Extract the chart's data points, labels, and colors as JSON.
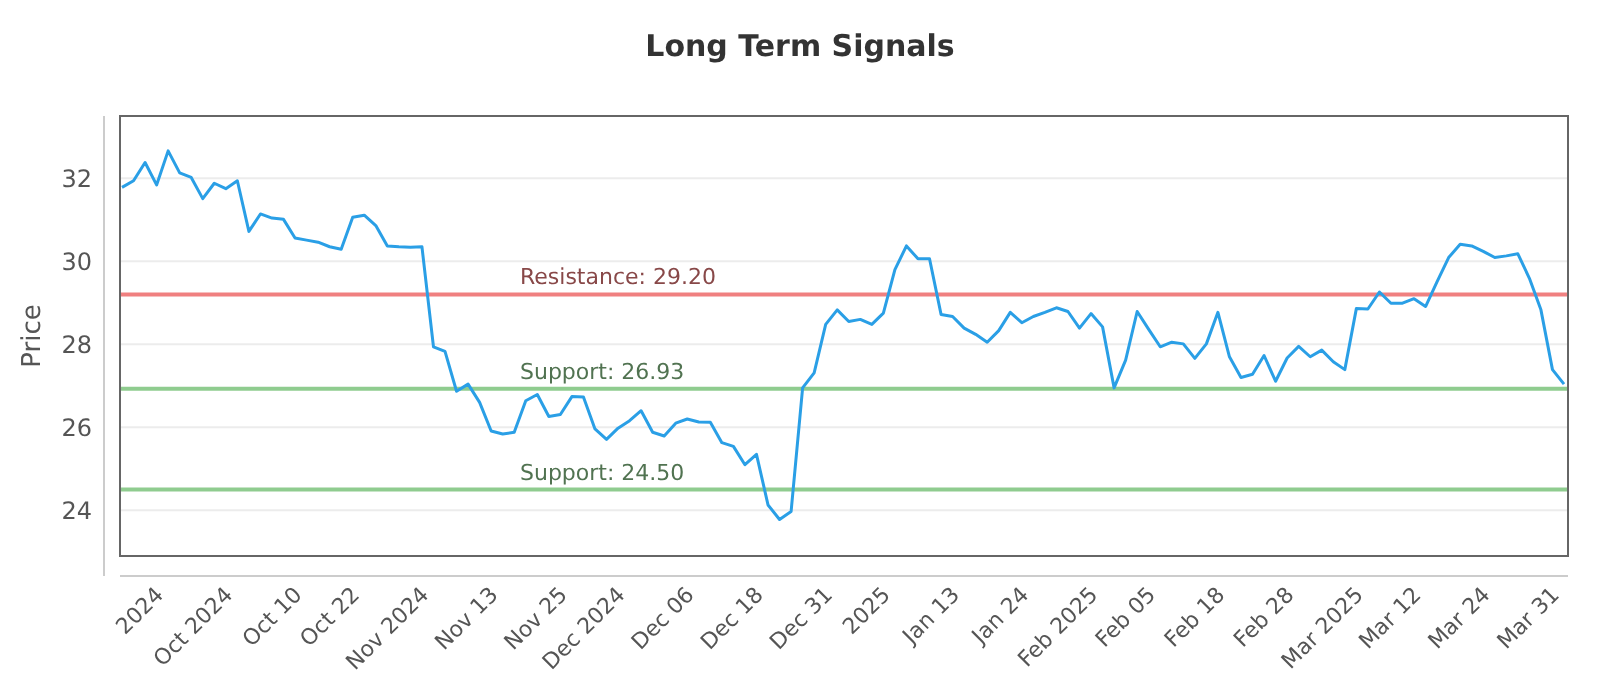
{
  "chart_data": {
    "type": "line",
    "title": "Long Term Signals",
    "ylabel": "Price",
    "categories": [
      null,
      null,
      null,
      "2024",
      null,
      null,
      null,
      null,
      null,
      "Oct 2024",
      null,
      null,
      null,
      null,
      null,
      "Oct 10",
      null,
      null,
      null,
      null,
      "Oct 22",
      null,
      null,
      null,
      null,
      null,
      "Nov 2024",
      null,
      null,
      null,
      null,
      null,
      "Nov 13",
      null,
      null,
      null,
      null,
      null,
      "Nov 25",
      null,
      null,
      null,
      null,
      "Dec 2024",
      null,
      null,
      null,
      null,
      null,
      "Dec 06",
      null,
      null,
      null,
      null,
      null,
      "Dec 18",
      null,
      null,
      null,
      null,
      null,
      "Dec 31",
      null,
      null,
      null,
      null,
      "2025",
      null,
      null,
      null,
      null,
      null,
      "Jan 13",
      null,
      null,
      null,
      null,
      null,
      "Jan 24",
      null,
      null,
      null,
      null,
      null,
      "Feb 2025",
      null,
      null,
      null,
      null,
      "Feb 05",
      null,
      null,
      null,
      null,
      null,
      "Feb 18",
      null,
      null,
      null,
      null,
      null,
      "Feb 28",
      null,
      null,
      null,
      null,
      null,
      "Mar 2025",
      null,
      null,
      null,
      null,
      "Mar 12",
      null,
      null,
      null,
      null,
      null,
      "Mar 24",
      null,
      null,
      null,
      null,
      null,
      "Mar 31",
      null
    ],
    "series": [
      {
        "color": "#2a9fe6",
        "values": [
          31.78,
          31.94,
          32.38,
          31.84,
          32.66,
          32.13,
          32.02,
          31.51,
          31.88,
          31.75,
          31.94,
          30.72,
          31.14,
          31.04,
          31.01,
          30.56,
          30.51,
          30.46,
          30.35,
          30.29,
          31.06,
          31.11,
          30.86,
          30.37,
          30.35,
          30.34,
          30.35,
          27.94,
          27.83,
          26.87,
          27.04,
          26.6,
          25.91,
          25.84,
          25.88,
          26.64,
          26.79,
          26.26,
          26.31,
          26.74,
          26.73,
          25.96,
          25.71,
          25.98,
          26.16,
          26.4,
          25.88,
          25.79,
          26.1,
          26.2,
          26.13,
          26.12,
          25.63,
          25.54,
          25.1,
          25.35,
          24.13,
          23.78,
          23.97,
          26.95,
          27.31,
          28.48,
          28.83,
          28.55,
          28.6,
          28.48,
          28.75,
          29.8,
          30.37,
          30.06,
          30.06,
          28.72,
          28.67,
          28.39,
          28.24,
          28.05,
          28.33,
          28.77,
          28.52,
          28.67,
          28.77,
          28.88,
          28.79,
          28.39,
          28.74,
          28.42,
          26.95,
          27.62,
          28.79,
          28.36,
          27.94,
          28.05,
          28.01,
          27.66,
          28.01,
          28.77,
          27.7,
          27.2,
          27.28,
          27.73,
          27.11,
          27.67,
          27.95,
          27.7,
          27.86,
          27.58,
          27.39,
          28.86,
          28.85,
          29.26,
          28.99,
          28.99,
          29.1,
          28.91,
          29.51,
          30.09,
          30.41,
          30.37,
          30.24,
          30.09,
          30.13,
          30.18,
          29.59,
          28.83,
          27.39,
          27.04
        ]
      }
    ],
    "ylim": [
      22.9,
      33.5
    ],
    "yticks": [
      24,
      26,
      28,
      30,
      32
    ],
    "grid": "y",
    "marker": "none",
    "line_style": "solid",
    "ref_lines": [
      {
        "axis": "y",
        "value": 29.2,
        "label": "Resistance: 29.20",
        "color": "#f08080"
      },
      {
        "axis": "y",
        "value": 26.93,
        "label": "Support: 26.93",
        "color": "#8fcc8f"
      },
      {
        "axis": "y",
        "value": 24.5,
        "label": "Support: 24.50",
        "color": "#8fcc8f"
      }
    ]
  }
}
